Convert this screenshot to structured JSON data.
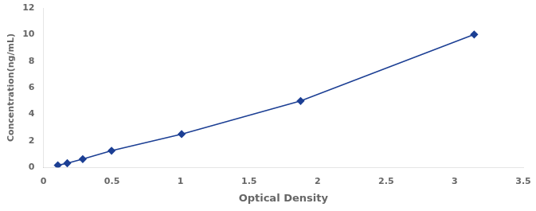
{
  "chart_data": {
    "type": "line",
    "x": [
      0.105,
      0.174,
      0.287,
      0.497,
      1.008,
      1.876,
      3.142
    ],
    "values": [
      0.156,
      0.312,
      0.625,
      1.25,
      2.5,
      5.0,
      10.0
    ],
    "color": "#1c3f94",
    "marker": "diamond",
    "line_style": "solid",
    "xlabel": "Optical Density",
    "ylabel": "Concentration(ng/mL)",
    "xlim": [
      0,
      3.5
    ],
    "ylim": [
      0,
      12
    ],
    "xticks": [
      0,
      0.5,
      1,
      1.5,
      2,
      2.5,
      3,
      3.5
    ],
    "yticks": [
      0,
      2,
      4,
      6,
      8,
      10,
      12
    ],
    "grid": false
  }
}
